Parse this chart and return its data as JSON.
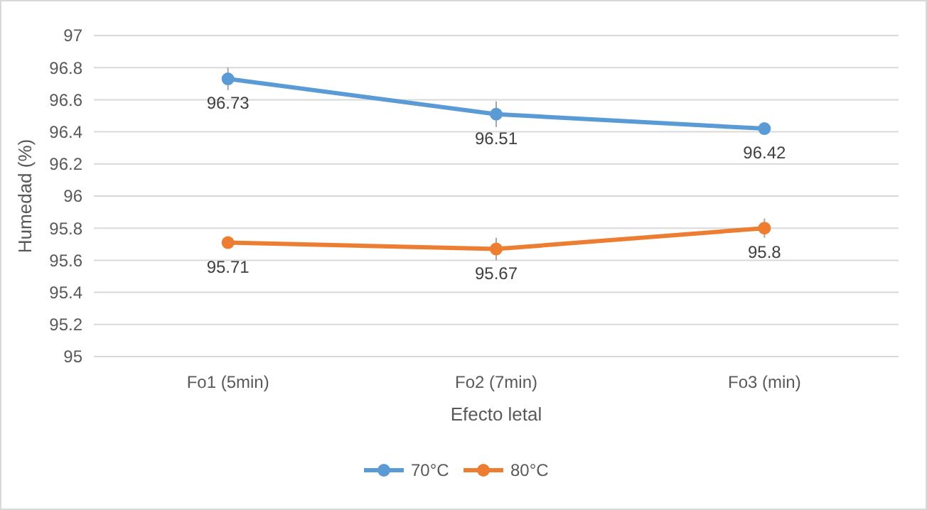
{
  "chart_data": {
    "type": "line",
    "xlabel": "Efecto letal",
    "ylabel": "Humedad (%)",
    "categories": [
      "Fo1 (5min)",
      "Fo2 (7min)",
      "Fo3 (min)"
    ],
    "series": [
      {
        "name": "70°C",
        "color": "#5b9bd5",
        "values": [
          96.73,
          96.51,
          96.42
        ],
        "errors": [
          0.07,
          0.08,
          null
        ]
      },
      {
        "name": "80°C",
        "color": "#ed7d31",
        "values": [
          95.71,
          95.67,
          95.8
        ],
        "errors": [
          null,
          0.07,
          0.06
        ]
      }
    ],
    "ylim": [
      95,
      97
    ],
    "yticks": [
      95,
      95.2,
      95.4,
      95.6,
      95.8,
      96,
      96.2,
      96.4,
      96.6,
      96.8,
      97
    ],
    "grid": "y",
    "legend": "bottom",
    "marker": "circle",
    "line_style": "solid",
    "data_labels": true
  }
}
